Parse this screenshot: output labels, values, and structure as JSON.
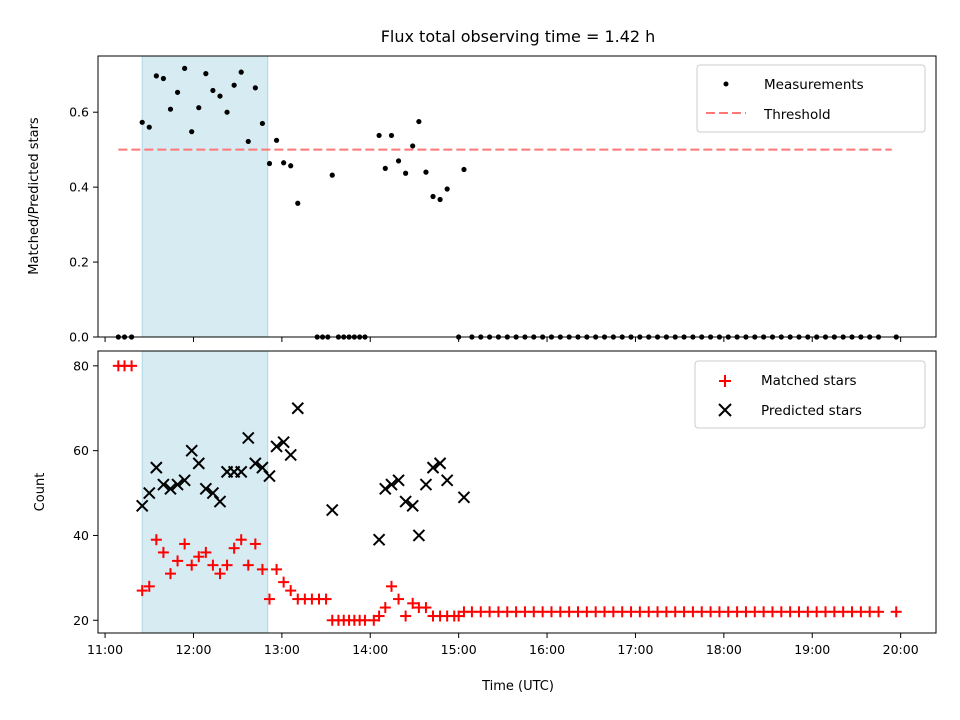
{
  "chart_data": [
    {
      "type": "scatter",
      "panel": "top",
      "title": "Flux total observing time = 1.42 h",
      "xlabel": "",
      "ylabel": "Matched/Predicted stars",
      "xlim": [
        10.92,
        20.4
      ],
      "ylim": [
        0.0,
        0.75
      ],
      "yticks": [
        0.0,
        0.2,
        0.4,
        0.6
      ],
      "yticklabels": [
        "0.0",
        "0.2",
        "0.4",
        "0.6"
      ],
      "xtick_values": [
        11,
        12,
        13,
        14,
        15,
        16,
        17,
        18,
        19,
        20
      ],
      "grid": false,
      "legend": "top-right",
      "highlight_span": {
        "start": 11.42,
        "end": 12.84,
        "color": "#add8e6"
      },
      "threshold": {
        "name": "Threshold",
        "value": 0.5,
        "x_start": 11.15,
        "x_end": 19.9,
        "color": "#ff7777"
      },
      "series": [
        {
          "name": "Measurements",
          "color": "#000000",
          "marker": "dot",
          "points": [
            [
              11.15,
              0.0
            ],
            [
              11.22,
              0.0
            ],
            [
              11.3,
              0.0
            ],
            [
              11.42,
              0.573
            ],
            [
              11.5,
              0.56
            ],
            [
              11.58,
              0.697
            ],
            [
              11.66,
              0.69
            ],
            [
              11.74,
              0.608
            ],
            [
              11.82,
              0.653
            ],
            [
              11.9,
              0.717
            ],
            [
              11.98,
              0.548
            ],
            [
              12.06,
              0.612
            ],
            [
              12.14,
              0.703
            ],
            [
              12.22,
              0.658
            ],
            [
              12.3,
              0.643
            ],
            [
              12.38,
              0.6
            ],
            [
              12.46,
              0.672
            ],
            [
              12.54,
              0.707
            ],
            [
              12.62,
              0.522
            ],
            [
              12.7,
              0.665
            ],
            [
              12.78,
              0.57
            ],
            [
              12.86,
              0.463
            ],
            [
              12.94,
              0.525
            ],
            [
              13.02,
              0.465
            ],
            [
              13.1,
              0.457
            ],
            [
              13.18,
              0.357
            ],
            [
              13.4,
              0.0
            ],
            [
              13.46,
              0.0
            ],
            [
              13.52,
              0.0
            ],
            [
              13.57,
              0.432
            ],
            [
              13.64,
              0.0
            ],
            [
              13.7,
              0.0
            ],
            [
              13.76,
              0.0
            ],
            [
              13.82,
              0.0
            ],
            [
              13.88,
              0.0
            ],
            [
              13.94,
              0.0
            ],
            [
              14.1,
              0.538
            ],
            [
              14.17,
              0.45
            ],
            [
              14.24,
              0.538
            ],
            [
              14.32,
              0.47
            ],
            [
              14.4,
              0.437
            ],
            [
              14.48,
              0.51
            ],
            [
              14.55,
              0.575
            ],
            [
              14.63,
              0.44
            ],
            [
              14.71,
              0.375
            ],
            [
              14.79,
              0.367
            ],
            [
              14.87,
              0.395
            ],
            [
              15.0,
              0.0
            ],
            [
              15.06,
              0.447
            ],
            [
              15.15,
              0.0
            ],
            [
              15.25,
              0.0
            ],
            [
              15.35,
              0.0
            ],
            [
              15.45,
              0.0
            ],
            [
              15.55,
              0.0
            ],
            [
              15.65,
              0.0
            ],
            [
              15.75,
              0.0
            ],
            [
              15.85,
              0.0
            ],
            [
              15.95,
              0.0
            ],
            [
              16.05,
              0.0
            ],
            [
              16.15,
              0.0
            ],
            [
              16.25,
              0.0
            ],
            [
              16.35,
              0.0
            ],
            [
              16.45,
              0.0
            ],
            [
              16.55,
              0.0
            ],
            [
              16.65,
              0.0
            ],
            [
              16.75,
              0.0
            ],
            [
              16.85,
              0.0
            ],
            [
              16.95,
              0.0
            ],
            [
              17.05,
              0.0
            ],
            [
              17.15,
              0.0
            ],
            [
              17.25,
              0.0
            ],
            [
              17.35,
              0.0
            ],
            [
              17.45,
              0.0
            ],
            [
              17.55,
              0.0
            ],
            [
              17.65,
              0.0
            ],
            [
              17.75,
              0.0
            ],
            [
              17.85,
              0.0
            ],
            [
              17.95,
              0.0
            ],
            [
              18.05,
              0.0
            ],
            [
              18.15,
              0.0
            ],
            [
              18.25,
              0.0
            ],
            [
              18.35,
              0.0
            ],
            [
              18.45,
              0.0
            ],
            [
              18.55,
              0.0
            ],
            [
              18.65,
              0.0
            ],
            [
              18.75,
              0.0
            ],
            [
              18.85,
              0.0
            ],
            [
              18.95,
              0.0
            ],
            [
              19.05,
              0.0
            ],
            [
              19.15,
              0.0
            ],
            [
              19.25,
              0.0
            ],
            [
              19.35,
              0.0
            ],
            [
              19.45,
              0.0
            ],
            [
              19.55,
              0.0
            ],
            [
              19.65,
              0.0
            ],
            [
              19.75,
              0.0
            ],
            [
              19.95,
              0.0
            ]
          ]
        }
      ]
    },
    {
      "type": "scatter",
      "panel": "bottom",
      "xlabel": "Time (UTC)",
      "ylabel": "Count",
      "xlim": [
        10.92,
        20.4
      ],
      "ylim": [
        17,
        83.5
      ],
      "yticks": [
        20,
        40,
        60,
        80
      ],
      "yticklabels": [
        "20",
        "40",
        "60",
        "80"
      ],
      "xtick_values": [
        11,
        12,
        13,
        14,
        15,
        16,
        17,
        18,
        19,
        20
      ],
      "xticklabels": [
        "11:00",
        "12:00",
        "13:00",
        "14:00",
        "15:00",
        "16:00",
        "17:00",
        "18:00",
        "19:00",
        "20:00"
      ],
      "grid": false,
      "legend": "top-right",
      "highlight_span": {
        "start": 11.42,
        "end": 12.84,
        "color": "#add8e6"
      },
      "series": [
        {
          "name": "Matched stars",
          "color": "#ff0000",
          "marker": "plus",
          "points": [
            [
              11.15,
              80
            ],
            [
              11.22,
              80
            ],
            [
              11.3,
              80
            ],
            [
              11.42,
              27
            ],
            [
              11.5,
              28
            ],
            [
              11.58,
              39
            ],
            [
              11.66,
              36
            ],
            [
              11.74,
              31
            ],
            [
              11.82,
              34
            ],
            [
              11.9,
              38
            ],
            [
              11.98,
              33
            ],
            [
              12.06,
              35
            ],
            [
              12.14,
              36
            ],
            [
              12.22,
              33
            ],
            [
              12.3,
              31
            ],
            [
              12.38,
              33
            ],
            [
              12.46,
              37
            ],
            [
              12.54,
              39
            ],
            [
              12.62,
              33
            ],
            [
              12.7,
              38
            ],
            [
              12.78,
              32
            ],
            [
              12.86,
              25
            ],
            [
              12.94,
              32
            ],
            [
              13.02,
              29
            ],
            [
              13.1,
              27
            ],
            [
              13.18,
              25
            ],
            [
              13.26,
              25
            ],
            [
              13.34,
              25
            ],
            [
              13.42,
              25
            ],
            [
              13.5,
              25
            ],
            [
              13.57,
              20
            ],
            [
              13.64,
              20
            ],
            [
              13.7,
              20
            ],
            [
              13.76,
              20
            ],
            [
              13.82,
              20
            ],
            [
              13.88,
              20
            ],
            [
              13.94,
              20
            ],
            [
              14.04,
              20
            ],
            [
              14.1,
              21
            ],
            [
              14.17,
              23
            ],
            [
              14.24,
              28
            ],
            [
              14.32,
              25
            ],
            [
              14.4,
              21
            ],
            [
              14.48,
              24
            ],
            [
              14.55,
              23
            ],
            [
              14.63,
              23
            ],
            [
              14.71,
              21
            ],
            [
              14.79,
              21
            ],
            [
              14.87,
              21
            ],
            [
              14.95,
              21
            ],
            [
              15.0,
              21
            ],
            [
              15.06,
              22
            ],
            [
              15.15,
              22
            ],
            [
              15.25,
              22
            ],
            [
              15.35,
              22
            ],
            [
              15.45,
              22
            ],
            [
              15.55,
              22
            ],
            [
              15.65,
              22
            ],
            [
              15.75,
              22
            ],
            [
              15.85,
              22
            ],
            [
              15.95,
              22
            ],
            [
              16.05,
              22
            ],
            [
              16.15,
              22
            ],
            [
              16.25,
              22
            ],
            [
              16.35,
              22
            ],
            [
              16.45,
              22
            ],
            [
              16.55,
              22
            ],
            [
              16.65,
              22
            ],
            [
              16.75,
              22
            ],
            [
              16.85,
              22
            ],
            [
              16.95,
              22
            ],
            [
              17.05,
              22
            ],
            [
              17.15,
              22
            ],
            [
              17.25,
              22
            ],
            [
              17.35,
              22
            ],
            [
              17.45,
              22
            ],
            [
              17.55,
              22
            ],
            [
              17.65,
              22
            ],
            [
              17.75,
              22
            ],
            [
              17.85,
              22
            ],
            [
              17.95,
              22
            ],
            [
              18.05,
              22
            ],
            [
              18.15,
              22
            ],
            [
              18.25,
              22
            ],
            [
              18.35,
              22
            ],
            [
              18.45,
              22
            ],
            [
              18.55,
              22
            ],
            [
              18.65,
              22
            ],
            [
              18.75,
              22
            ],
            [
              18.85,
              22
            ],
            [
              18.95,
              22
            ],
            [
              19.05,
              22
            ],
            [
              19.15,
              22
            ],
            [
              19.25,
              22
            ],
            [
              19.35,
              22
            ],
            [
              19.45,
              22
            ],
            [
              19.55,
              22
            ],
            [
              19.65,
              22
            ],
            [
              19.75,
              22
            ],
            [
              19.95,
              22
            ]
          ]
        },
        {
          "name": "Predicted stars",
          "color": "#000000",
          "marker": "x",
          "points": [
            [
              11.42,
              47
            ],
            [
              11.5,
              50
            ],
            [
              11.58,
              56
            ],
            [
              11.66,
              52
            ],
            [
              11.74,
              51
            ],
            [
              11.82,
              52
            ],
            [
              11.9,
              53
            ],
            [
              11.98,
              60
            ],
            [
              12.06,
              57
            ],
            [
              12.14,
              51
            ],
            [
              12.22,
              50
            ],
            [
              12.3,
              48
            ],
            [
              12.38,
              55
            ],
            [
              12.46,
              55
            ],
            [
              12.54,
              55
            ],
            [
              12.62,
              63
            ],
            [
              12.7,
              57
            ],
            [
              12.78,
              56
            ],
            [
              12.86,
              54
            ],
            [
              12.94,
              61
            ],
            [
              13.02,
              62
            ],
            [
              13.1,
              59
            ],
            [
              13.18,
              70
            ],
            [
              13.57,
              46
            ],
            [
              14.1,
              39
            ],
            [
              14.17,
              51
            ],
            [
              14.24,
              52
            ],
            [
              14.32,
              53
            ],
            [
              14.4,
              48
            ],
            [
              14.48,
              47
            ],
            [
              14.55,
              40
            ],
            [
              14.63,
              52
            ],
            [
              14.71,
              56
            ],
            [
              14.79,
              57
            ],
            [
              14.87,
              53
            ],
            [
              15.06,
              49
            ]
          ]
        }
      ]
    }
  ]
}
